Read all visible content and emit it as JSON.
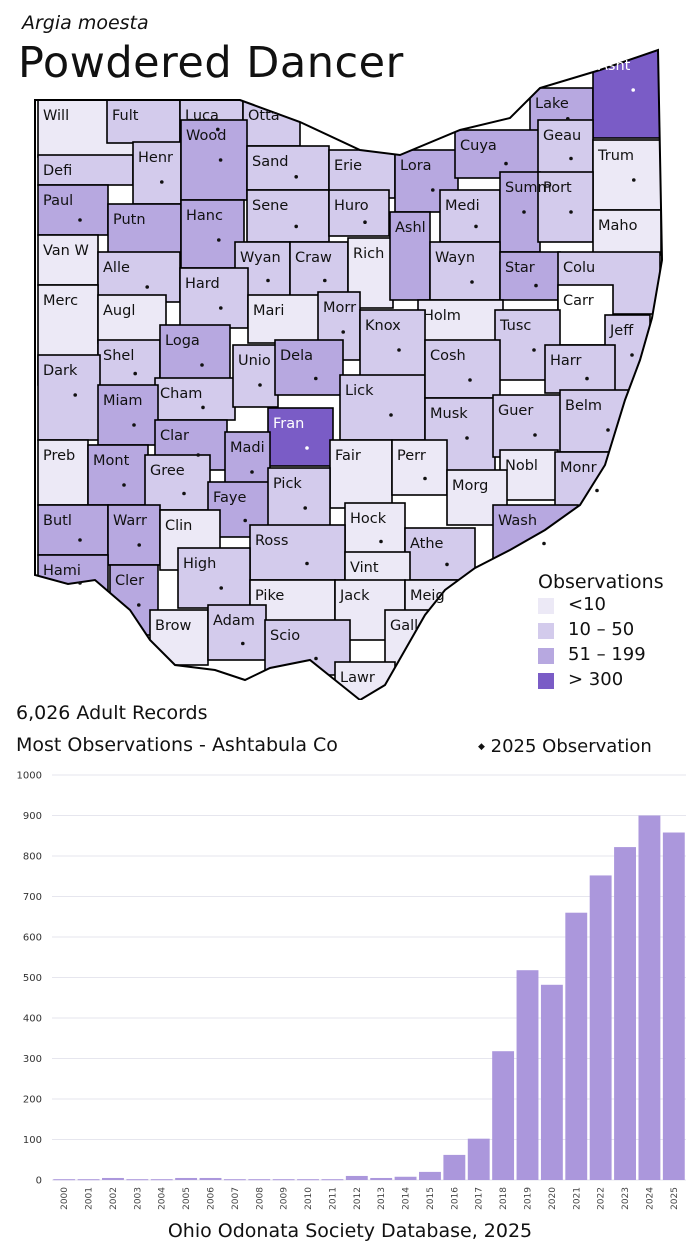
{
  "header": {
    "scientific_name": "Argia moesta",
    "common_name": "Powdered Dancer"
  },
  "summary": {
    "records": "6,026 Adult Records",
    "most": "Most Observations - Ashtabula Co",
    "marker_label": "2025  Observation"
  },
  "legend": {
    "title": "Observations",
    "items": [
      {
        "label": "<10",
        "color": "#ece9f6"
      },
      {
        "label": "10 – 50",
        "color": "#d3cbec"
      },
      {
        "label": "51 – 199",
        "color": "#b7a8e0"
      },
      {
        "label": "> 300",
        "color": "#7a5cc6"
      }
    ]
  },
  "source": "Ohio Odonata Society Database, 2025",
  "map": {
    "counties": [
      {
        "label": "Will",
        "level": 0
      },
      {
        "label": "Fult",
        "level": 1
      },
      {
        "label": "Luca",
        "level": 1
      },
      {
        "label": "Otta",
        "level": 1
      },
      {
        "label": "Lake",
        "level": 2
      },
      {
        "label": "Asht",
        "level": 3
      },
      {
        "label": "Defi",
        "level": 1
      },
      {
        "label": "Henr",
        "level": 1
      },
      {
        "label": "Wood",
        "level": 2
      },
      {
        "label": "Sand",
        "level": 1
      },
      {
        "label": "Erie",
        "level": 1
      },
      {
        "label": "Lora",
        "level": 2
      },
      {
        "label": "Cuya",
        "level": 2
      },
      {
        "label": "Geau",
        "level": 1
      },
      {
        "label": "Trum",
        "level": 0
      },
      {
        "label": "Paul",
        "level": 2
      },
      {
        "label": "Putn",
        "level": 2
      },
      {
        "label": "Hanc",
        "level": 2
      },
      {
        "label": "Sene",
        "level": 1
      },
      {
        "label": "Huro",
        "level": 1
      },
      {
        "label": "Medi",
        "level": 1
      },
      {
        "label": "Summ",
        "level": 2
      },
      {
        "label": "Port",
        "level": 1
      },
      {
        "label": "Maho",
        "level": 0
      },
      {
        "label": "Van W",
        "level": 0
      },
      {
        "label": "Alle",
        "level": 1
      },
      {
        "label": "Wyan",
        "level": 1
      },
      {
        "label": "Craw",
        "level": 1
      },
      {
        "label": "Rich",
        "level": 0
      },
      {
        "label": "Ashl",
        "level": 2
      },
      {
        "label": "Wayn",
        "level": 1
      },
      {
        "label": "Star",
        "level": 2
      },
      {
        "label": "Colu",
        "level": 1
      },
      {
        "label": "Merc",
        "level": 0
      },
      {
        "label": "Augl",
        "level": 0
      },
      {
        "label": "Hard",
        "level": 1
      },
      {
        "label": "Mari",
        "level": 0
      },
      {
        "label": "Morr",
        "level": 1
      },
      {
        "label": "Holm",
        "level": 0
      },
      {
        "label": "Carr",
        "level": -1
      },
      {
        "label": "Shel",
        "level": 1
      },
      {
        "label": "Loga",
        "level": 2
      },
      {
        "label": "Knox",
        "level": 1
      },
      {
        "label": "Tusc",
        "level": 1
      },
      {
        "label": "Jeff",
        "level": 1
      },
      {
        "label": "Dark",
        "level": 1
      },
      {
        "label": "Cham",
        "level": 1
      },
      {
        "label": "Unio",
        "level": 1
      },
      {
        "label": "Dela",
        "level": 2
      },
      {
        "label": "Lick",
        "level": 1
      },
      {
        "label": "Cosh",
        "level": 1
      },
      {
        "label": "Harr",
        "level": 1
      },
      {
        "label": "Miam",
        "level": 2
      },
      {
        "label": "Clar",
        "level": 2
      },
      {
        "label": "Fran",
        "level": 3
      },
      {
        "label": "Musk",
        "level": 1
      },
      {
        "label": "Guer",
        "level": 1
      },
      {
        "label": "Belm",
        "level": 1
      },
      {
        "label": "Preb",
        "level": 0
      },
      {
        "label": "Mont",
        "level": 2
      },
      {
        "label": "Gree",
        "level": 1
      },
      {
        "label": "Madi",
        "level": 2
      },
      {
        "label": "Fair",
        "level": 0
      },
      {
        "label": "Perr",
        "level": 0
      },
      {
        "label": "Nobl",
        "level": 0
      },
      {
        "label": "Monr",
        "level": 1
      },
      {
        "label": "Faye",
        "level": 2
      },
      {
        "label": "Pick",
        "level": 1
      },
      {
        "label": "Morg",
        "level": 0
      },
      {
        "label": "Butl",
        "level": 2
      },
      {
        "label": "Warr",
        "level": 2
      },
      {
        "label": "Clin",
        "level": 0
      },
      {
        "label": "Hock",
        "level": 0
      },
      {
        "label": "Wash",
        "level": 2
      },
      {
        "label": "Ross",
        "level": 1
      },
      {
        "label": "Athe",
        "level": 1
      },
      {
        "label": "Hami",
        "level": 2
      },
      {
        "label": "Cler",
        "level": 2
      },
      {
        "label": "High",
        "level": 1
      },
      {
        "label": "Vint",
        "level": 0
      },
      {
        "label": "Pike",
        "level": 0
      },
      {
        "label": "Jack",
        "level": 0
      },
      {
        "label": "Meig",
        "level": 0
      },
      {
        "label": "Brow",
        "level": 0
      },
      {
        "label": "Adam",
        "level": 1
      },
      {
        "label": "Scio",
        "level": 1
      },
      {
        "label": "Gall",
        "level": 0
      },
      {
        "label": "Lawr",
        "level": 0
      }
    ]
  },
  "chart_data": {
    "type": "bar",
    "categories": [
      "2000",
      "2001",
      "2002",
      "2003",
      "2004",
      "2005",
      "2006",
      "2007",
      "2008",
      "2009",
      "2010",
      "2011",
      "2012",
      "2013",
      "2014",
      "2015",
      "2016",
      "2017",
      "2018",
      "2019",
      "2020",
      "2021",
      "2022",
      "2023",
      "2024",
      "2025"
    ],
    "values": [
      2,
      2,
      5,
      2,
      2,
      5,
      5,
      2,
      2,
      2,
      2,
      2,
      10,
      5,
      8,
      20,
      62,
      102,
      318,
      518,
      482,
      660,
      752,
      822,
      900,
      858
    ],
    "yticks": [
      "0",
      "100",
      "200",
      "300",
      "400",
      "500",
      "600",
      "700",
      "800",
      "900",
      "1000"
    ],
    "ylim": [
      0,
      1000
    ],
    "bar_color": "#ab97dc",
    "grid": true,
    "xlabel": "",
    "ylabel": ""
  }
}
